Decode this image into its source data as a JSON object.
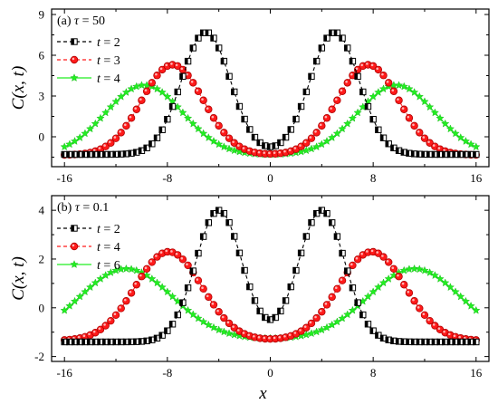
{
  "chart_data": [
    {
      "type": "line",
      "panel_label": "(a)",
      "param_name": "τ",
      "param_value": "50",
      "ylabel": "C(x, t)",
      "xlabel": "",
      "xlim": [
        -17,
        17
      ],
      "ylim": [
        -2.2,
        9.4
      ],
      "xticks": [
        -16,
        -8,
        0,
        8,
        16
      ],
      "yticks": [
        0,
        3,
        6,
        9
      ],
      "grid": false,
      "legend_position": "top-left",
      "series": [
        {
          "name": "t = 2",
          "t": "2",
          "color": "#000000",
          "marker": "square",
          "dashed": true,
          "baseline": -1.3,
          "peak_height": 7.7,
          "peak_x": 5.0,
          "width": 1.9
        },
        {
          "name": "t = 3",
          "t": "3",
          "color": "#ff1a1a",
          "marker": "circle",
          "dashed": true,
          "baseline": -1.35,
          "peak_height": 5.3,
          "peak_x": 7.6,
          "width": 2.4
        },
        {
          "name": "t = 4",
          "t": "4",
          "color": "#22ee22",
          "marker": "star",
          "dashed": false,
          "baseline": -1.35,
          "peak_height": 3.8,
          "peak_x": 9.8,
          "width": 3.0
        }
      ]
    },
    {
      "type": "line",
      "panel_label": "(b)",
      "param_name": "τ",
      "param_value": "0.1",
      "ylabel": "C(x, t)",
      "xlabel": "x",
      "xlim": [
        -17,
        17
      ],
      "ylim": [
        -2.2,
        4.6
      ],
      "xticks": [
        -16,
        -8,
        0,
        8,
        16
      ],
      "yticks": [
        -2,
        0,
        2,
        4
      ],
      "grid": false,
      "legend_position": "top-left",
      "series": [
        {
          "name": "t = 2",
          "t": "2",
          "color": "#000000",
          "marker": "square",
          "dashed": true,
          "baseline": -1.4,
          "peak_height": 4.0,
          "peak_x": 4.0,
          "width": 1.8
        },
        {
          "name": "t = 4",
          "t": "4",
          "color": "#ff1a1a",
          "marker": "circle",
          "dashed": true,
          "baseline": -1.35,
          "peak_height": 2.3,
          "peak_x": 7.9,
          "width": 2.6
        },
        {
          "name": "t = 6",
          "t": "6",
          "color": "#22ee22",
          "marker": "star",
          "dashed": false,
          "baseline": -1.3,
          "peak_height": 1.6,
          "peak_x": 11.2,
          "width": 3.6
        }
      ]
    }
  ]
}
